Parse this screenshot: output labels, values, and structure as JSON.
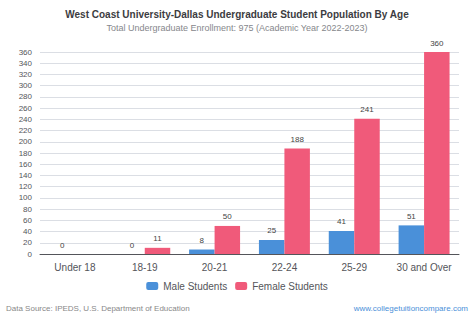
{
  "chart_data": {
    "type": "bar",
    "title": "West Coast University-Dallas Undergraduate Student Population By Age",
    "subtitle": "Total Undergraduate Enrollment: 975 (Academic Year 2022-2023)",
    "categories": [
      "Under 18",
      "18-19",
      "20-21",
      "22-24",
      "25-29",
      "30 and Over"
    ],
    "series": [
      {
        "name": "Male Students",
        "color": "#4a90d9",
        "values": [
          0,
          0,
          8,
          25,
          41,
          51
        ]
      },
      {
        "name": "Female Students",
        "color": "#f05a7a",
        "values": [
          0,
          11,
          50,
          188,
          241,
          360
        ],
        "value_labels": [
          null,
          "11",
          "50",
          "188",
          "241",
          "360"
        ]
      }
    ],
    "ylim": [
      0,
      360
    ],
    "yticks": [
      0,
      20,
      40,
      60,
      80,
      100,
      120,
      140,
      160,
      180,
      200,
      220,
      240,
      260,
      280,
      300,
      320,
      340,
      360
    ],
    "grid": true,
    "legend": "bottom",
    "data_labels": true,
    "annotations": [
      "Data Source: IPEDS, U.S. Department of Education",
      "www.collegetuitioncompare.com"
    ]
  }
}
